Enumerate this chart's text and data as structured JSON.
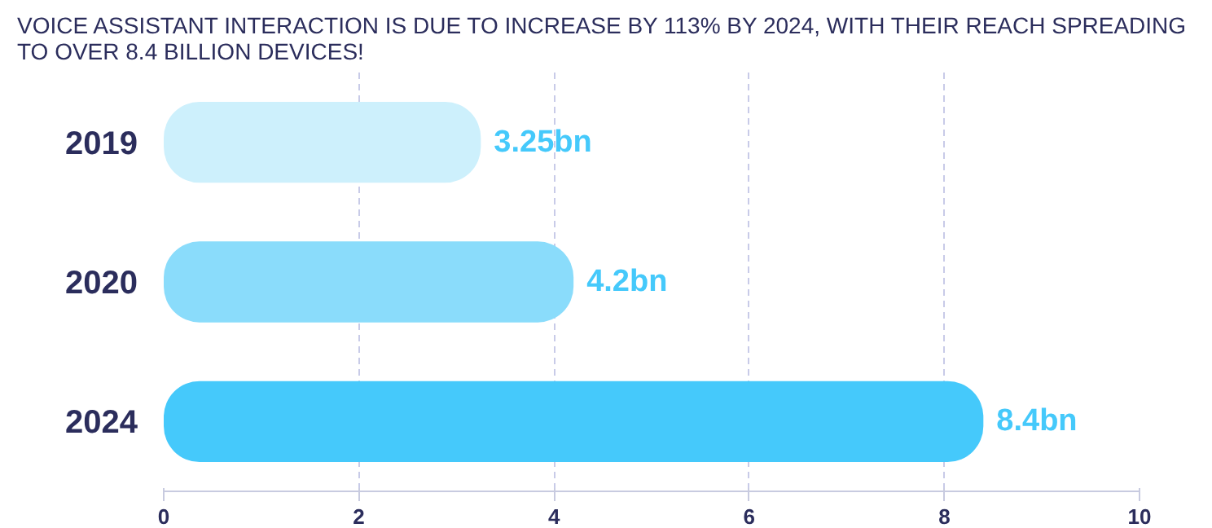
{
  "chart_data": {
    "type": "bar",
    "orientation": "horizontal",
    "title": "VOICE ASSISTANT INTERACTION IS DUE TO INCREASE BY 113% BY 2024, WITH THEIR REACH SPREADING TO OVER 8.4 BILLION DEVICES!",
    "categories": [
      "2019",
      "2020",
      "2024"
    ],
    "values": [
      3.25,
      4.2,
      8.4
    ],
    "colors": [
      "#cdf0fc",
      "#8adcfb",
      "#45c9fb"
    ],
    "value_labels": [
      "3.25bn",
      "4.2bn",
      "8.4bn"
    ],
    "xlim": [
      0,
      10
    ],
    "xticks": [
      0,
      2,
      4,
      6,
      8,
      10
    ],
    "grid": "x"
  }
}
